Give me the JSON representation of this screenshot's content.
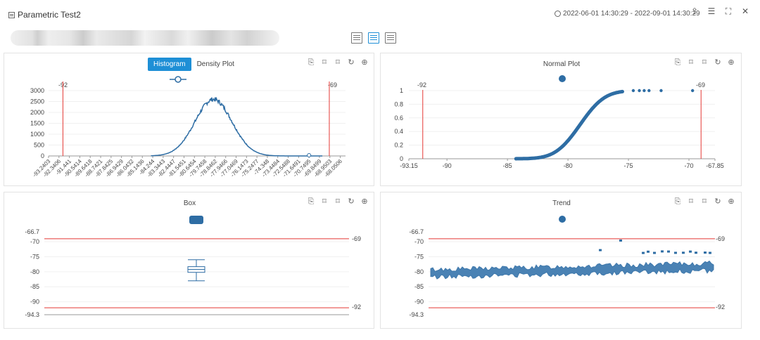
{
  "window": {
    "title": "Parametric Test2",
    "date_range": "2022-06-01 14:30:29 - 2022-09-01 14:30:29"
  },
  "panels": {
    "histogram": {
      "tabs": [
        {
          "label": "Histogram",
          "active": true
        },
        {
          "label": "Density Plot",
          "active": false
        }
      ],
      "limits": {
        "lower": "-92",
        "upper": "-69"
      }
    },
    "normal": {
      "title": "Normal Plot",
      "limits": {
        "lower": "-92",
        "upper": "-69"
      }
    },
    "box": {
      "title": "Box",
      "limits": {
        "upper": "-69",
        "lower": "-92"
      }
    },
    "trend": {
      "title": "Trend",
      "limits": {
        "upper": "-69",
        "lower": "-92"
      }
    }
  },
  "colors": {
    "accent": "#1e8fd6",
    "series": "#2e6da4",
    "limit": "#e53935"
  },
  "chart_data": [
    {
      "type": "bar",
      "title": "Histogram",
      "ylim": [
        0,
        3000
      ],
      "yticks": [
        "3000",
        "2500",
        "2000",
        "1500",
        "1000",
        "500",
        "0"
      ],
      "xticks": [
        "-93.2403",
        "-92.3406",
        "-91.441",
        "-90.5414",
        "-89.6418",
        "-88.7421",
        "-87.8425",
        "-86.9429",
        "-86.0432",
        "-85.1436",
        "-84.244",
        "-83.3443",
        "-82.4447",
        "-81.5451",
        "-80.6454",
        "-79.7458",
        "-78.8462",
        "-77.9466",
        "-77.0469",
        "-76.1473",
        "-75.2477",
        "-74.348",
        "-73.4484",
        "-72.5488",
        "-71.6491",
        "-70.7495",
        "-69.8499",
        "-68.9503",
        "-68.0506"
      ],
      "xlim": [
        -93.24,
        -67.6
      ],
      "limits": [
        -92,
        -69
      ],
      "distribution": {
        "mean": -79.0,
        "std": 1.6,
        "peak": 2600
      }
    },
    {
      "type": "scatter",
      "title": "Normal Plot",
      "xlim": [
        -93.15,
        -67.85
      ],
      "ylim": [
        0,
        1
      ],
      "xticks": [
        "-93.15",
        "-90",
        "-85",
        "-80",
        "-75",
        "-70",
        "-67.85"
      ],
      "yticks": [
        "1",
        "0.8",
        "0.6",
        "0.4",
        "0.2",
        "0"
      ],
      "limits": [
        -92,
        -69
      ],
      "cdf": {
        "mean": -79.0,
        "std": 1.6,
        "x_from": -84.3,
        "x_to": -75.5
      },
      "outliers": [
        -74.6,
        -74.1,
        -73.7,
        -73.3,
        -72.3,
        -69.7
      ]
    },
    {
      "type": "box",
      "title": "Box",
      "ylim": [
        -94.3,
        -66.7
      ],
      "yticks": [
        "-66.7",
        "-70",
        "-75",
        "-80",
        "-85",
        "-90",
        "-94.3"
      ],
      "limits": [
        -69,
        -92
      ],
      "whisker_high": -76.0,
      "q3": -78.3,
      "median": -79.2,
      "q1": -80.2,
      "whisker_low": -83.0
    },
    {
      "type": "scatter",
      "title": "Trend",
      "ylim": [
        -94.3,
        -66.7
      ],
      "yticks": [
        "-66.7",
        "-70",
        "-75",
        "-80",
        "-85",
        "-90",
        "-94.3"
      ],
      "limits": [
        -69,
        -92
      ],
      "trend": {
        "start": -80.5,
        "end": -78.4,
        "band": 2.4
      },
      "outliers": [
        -72.8,
        -69.6,
        -73.5
      ]
    }
  ]
}
